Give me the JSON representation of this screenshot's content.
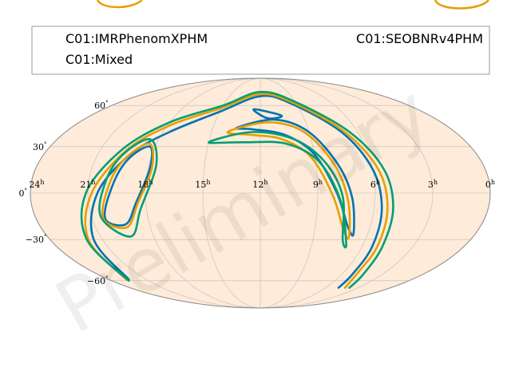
{
  "chart_data": {
    "type": "contour",
    "projection": "mollweide",
    "grid": true,
    "legend_position": "top",
    "watermark": "Preliminary",
    "ra_tick_labels": [
      "24h",
      "21h",
      "18h",
      "15h",
      "12h",
      "9h",
      "6h",
      "3h",
      "0h"
    ],
    "dec_tick_labels": [
      "60°",
      "30°",
      "0°",
      "−30°",
      "−60°"
    ],
    "series": [
      {
        "name": "C01:IMRPhenomXPHM",
        "color": "#0072b2",
        "contours": [
          [
            [
              22.4,
              -59
            ],
            [
              21.5,
              -30
            ],
            [
              20.5,
              0
            ],
            [
              19.2,
              25
            ],
            [
              17.6,
              40
            ],
            [
              15,
              55
            ],
            [
              12,
              68
            ],
            [
              9.5,
              62
            ],
            [
              7,
              40
            ],
            [
              6,
              15
            ],
            [
              5.6,
              -10
            ],
            [
              5.4,
              -35
            ],
            [
              5.2,
              -55
            ],
            [
              4.8,
              -66
            ]
          ],
          [
            [
              20.3,
              -16
            ],
            [
              19.7,
              6
            ],
            [
              19.2,
              22
            ],
            [
              18.3,
              30
            ],
            [
              17.9,
              16
            ],
            [
              18.5,
              -6
            ],
            [
              19.3,
              -20
            ],
            [
              20.3,
              -16
            ]
          ],
          [
            [
              13.5,
              43
            ],
            [
              11,
              49
            ],
            [
              9,
              40
            ],
            [
              7.8,
              18
            ],
            [
              7.2,
              -3
            ],
            [
              6.8,
              -26
            ],
            [
              7.2,
              -22
            ],
            [
              8.0,
              0
            ],
            [
              9.0,
              25
            ],
            [
              10.5,
              38
            ],
            [
              12.5,
              42
            ],
            [
              13.5,
              43
            ]
          ],
          [
            [
              12.5,
              57
            ],
            [
              10.5,
              52
            ],
            [
              11.5,
              50
            ],
            [
              12.5,
              57
            ]
          ]
        ]
      },
      {
        "name": "C01:SEOBNRv4PHM",
        "color": "#e69f00",
        "contours": [
          [
            [
              22.6,
              -59
            ],
            [
              21.8,
              -30
            ],
            [
              20.8,
              0
            ],
            [
              19.5,
              28
            ],
            [
              17.8,
              45
            ],
            [
              15,
              58
            ],
            [
              12,
              70
            ],
            [
              9.2,
              62
            ],
            [
              6.8,
              40
            ],
            [
              5.7,
              15
            ],
            [
              5.3,
              -10
            ],
            [
              5.1,
              -35
            ],
            [
              4.9,
              -55
            ],
            [
              4.2,
              -66
            ]
          ],
          [
            [
              20.4,
              -16
            ],
            [
              19.9,
              6
            ],
            [
              19.4,
              22
            ],
            [
              18.4,
              32
            ],
            [
              17.8,
              16
            ],
            [
              18.4,
              -6
            ],
            [
              19.3,
              -22
            ],
            [
              20.4,
              -16
            ]
          ],
          [
            [
              14,
              40
            ],
            [
              11.5,
              47
            ],
            [
              9.3,
              40
            ],
            [
              8.0,
              18
            ],
            [
              7.4,
              -5
            ],
            [
              7.0,
              -28
            ],
            [
              7.4,
              -24
            ],
            [
              8.2,
              -2
            ],
            [
              9.2,
              23
            ],
            [
              10.7,
              35
            ],
            [
              12.5,
              38
            ],
            [
              14,
              40
            ]
          ]
        ]
      },
      {
        "name": "C01:Mixed",
        "color": "#009e73",
        "contours": [
          [
            [
              22.6,
              -60
            ],
            [
              21.9,
              -30
            ],
            [
              21.1,
              0
            ],
            [
              19.8,
              28
            ],
            [
              18,
              47
            ],
            [
              15,
              60
            ],
            [
              12,
              72
            ],
            [
              9,
              63
            ],
            [
              6.5,
              40
            ],
            [
              5.4,
              15
            ],
            [
              5,
              -10
            ],
            [
              4.8,
              -35
            ],
            [
              4.4,
              -55
            ],
            [
              3.8,
              -66
            ]
          ],
          [
            [
              20.5,
              -15
            ],
            [
              20.1,
              8
            ],
            [
              19.6,
              25
            ],
            [
              18.5,
              35
            ],
            [
              17.6,
              18
            ],
            [
              18.3,
              -10
            ],
            [
              19.3,
              -28
            ],
            [
              20.5,
              -15
            ]
          ],
          [
            [
              15,
              33
            ],
            [
              12.5,
              40
            ],
            [
              10,
              35
            ],
            [
              8.5,
              20
            ],
            [
              7.7,
              -2
            ],
            [
              7.3,
              -30
            ],
            [
              7.0,
              -33
            ],
            [
              7.8,
              -5
            ],
            [
              8.8,
              20
            ],
            [
              10.5,
              32
            ],
            [
              13,
              33
            ],
            [
              15,
              33
            ]
          ]
        ]
      }
    ]
  },
  "legend": {
    "entries": [
      "C01:IMRPhenomXPHM",
      "C01:SEOBNRv4PHM",
      "C01:Mixed"
    ]
  }
}
